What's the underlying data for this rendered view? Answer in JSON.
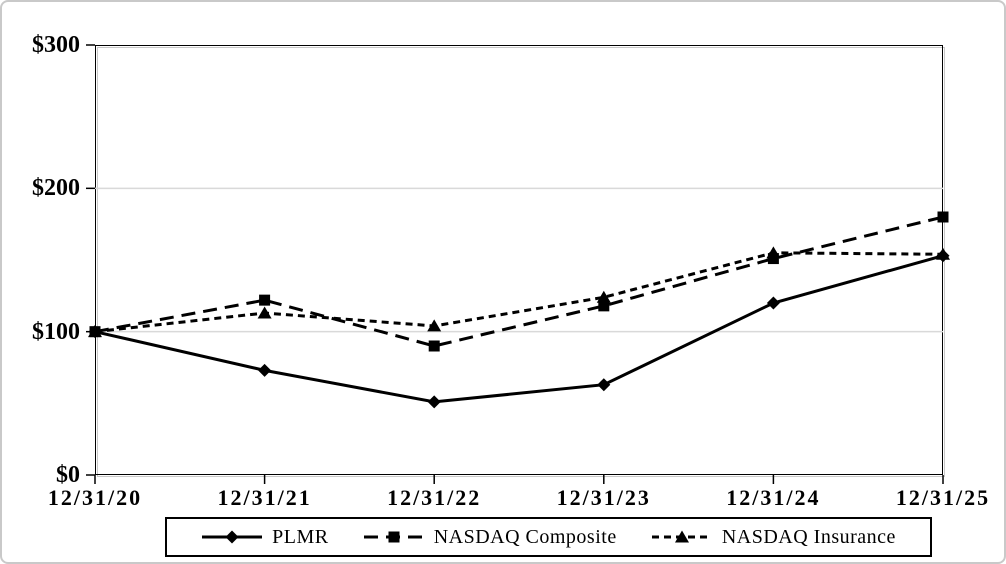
{
  "chart_data": {
    "type": "line",
    "title": "",
    "categories": [
      "12/31/20",
      "12/31/21",
      "12/31/22",
      "12/31/23",
      "12/31/24",
      "12/31/25"
    ],
    "y_axis": {
      "ticks": [
        0,
        100,
        200,
        300
      ],
      "tick_labels": [
        "$0",
        "$100",
        "$200",
        "$300"
      ],
      "ylim": [
        0,
        300
      ]
    },
    "gridlines_y": [
      100,
      200
    ],
    "legend_position": "bottom",
    "series": [
      {
        "name": "PLMR",
        "marker": "diamond",
        "line_style": "solid",
        "values": [
          100,
          73,
          51,
          63,
          120,
          153
        ]
      },
      {
        "name": "NASDAQ Composite",
        "marker": "square",
        "line_style": "long-dash",
        "values": [
          100,
          122,
          90,
          118,
          151,
          180
        ]
      },
      {
        "name": "NASDAQ Insurance",
        "marker": "triangle",
        "line_style": "short-dash",
        "values": [
          100,
          113,
          104,
          124,
          155,
          154
        ]
      }
    ],
    "colors": {
      "series": "#000000",
      "gridline": "#d9d9d9",
      "axis": "#000000",
      "page_border": "#c9c9c9"
    }
  }
}
